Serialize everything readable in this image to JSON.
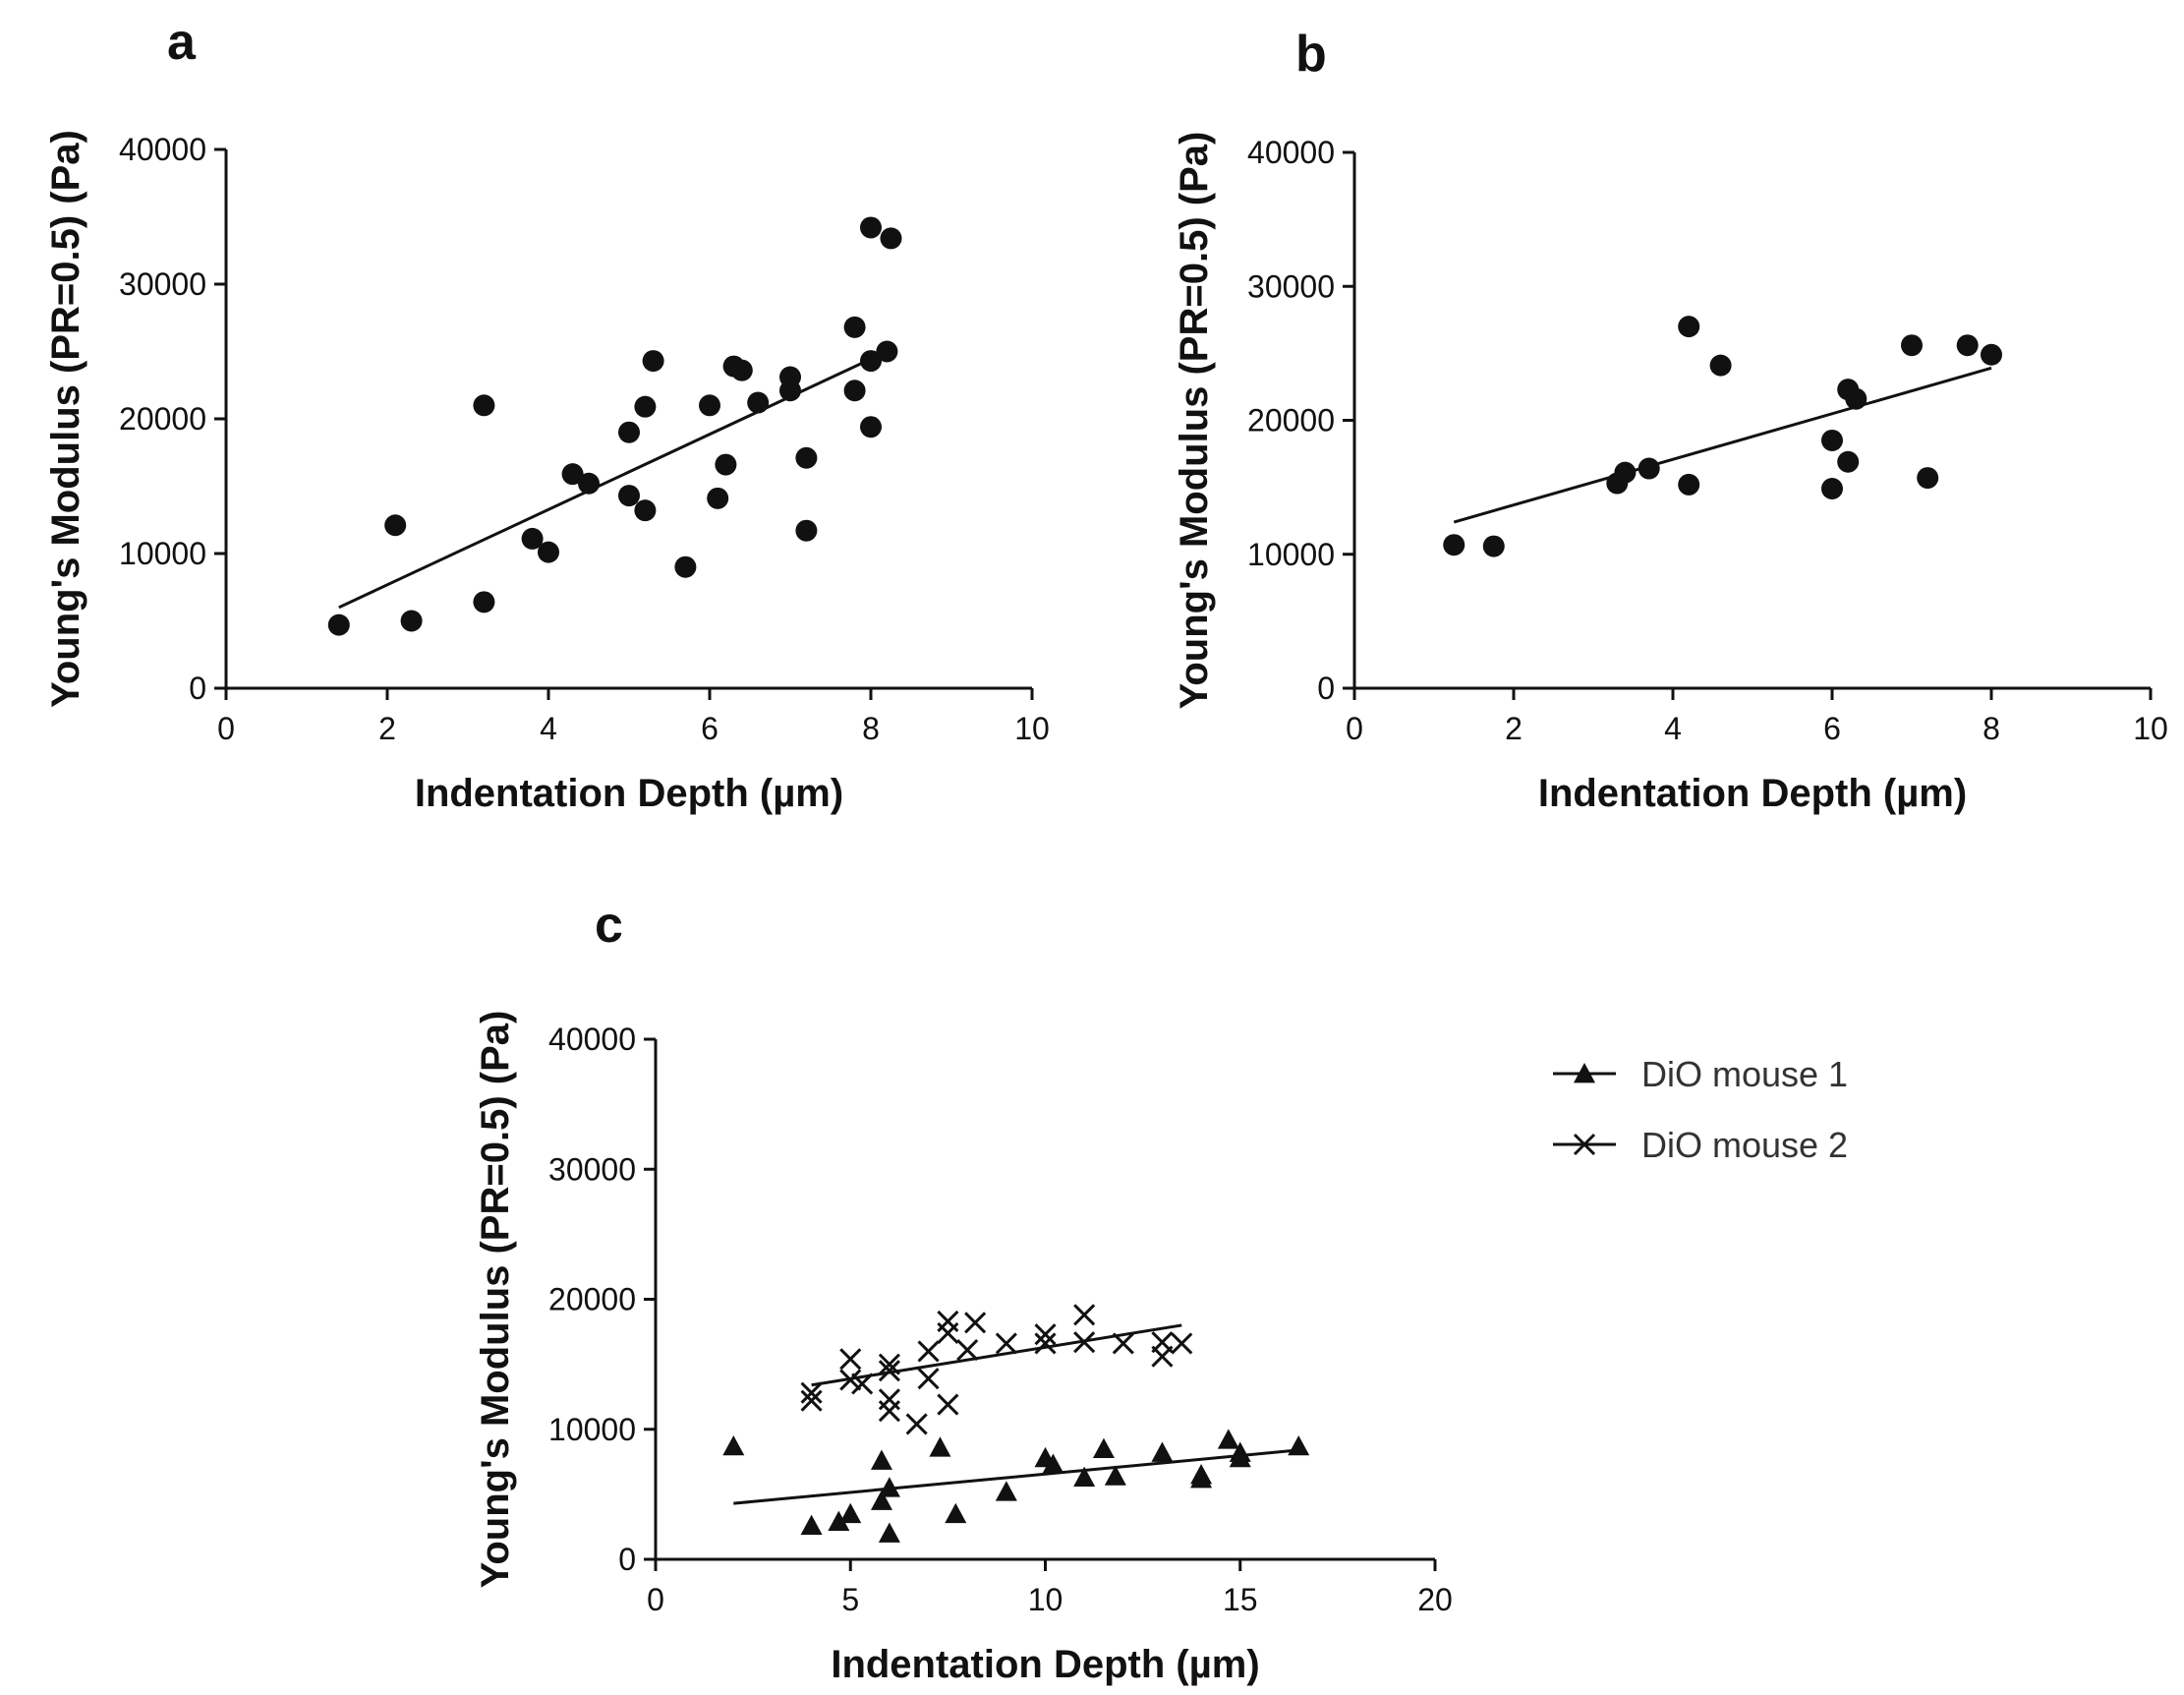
{
  "chart_data": [
    {
      "panel": "a",
      "type": "scatter",
      "xlabel": "Indentation Depth (µm)",
      "ylabel": "Young's Modulus (PR=0.5) (Pa)",
      "xlim": [
        0,
        10
      ],
      "ylim": [
        0,
        40000
      ],
      "xticks": [
        0,
        2,
        4,
        6,
        8,
        10
      ],
      "yticks": [
        0,
        10000,
        20000,
        30000,
        40000
      ],
      "series": [
        {
          "name": "data",
          "marker": "circle",
          "points": [
            [
              1.4,
              4700
            ],
            [
              2.1,
              12100
            ],
            [
              2.3,
              5000
            ],
            [
              3.2,
              21000
            ],
            [
              3.2,
              6400
            ],
            [
              3.8,
              11100
            ],
            [
              4.0,
              10100
            ],
            [
              4.3,
              15900
            ],
            [
              4.5,
              15200
            ],
            [
              5.0,
              19000
            ],
            [
              5.0,
              14300
            ],
            [
              5.2,
              20900
            ],
            [
              5.2,
              13200
            ],
            [
              5.3,
              24300
            ],
            [
              5.7,
              9000
            ],
            [
              6.0,
              21000
            ],
            [
              6.1,
              14100
            ],
            [
              6.2,
              16600
            ],
            [
              6.3,
              23900
            ],
            [
              6.4,
              23600
            ],
            [
              6.6,
              21200
            ],
            [
              7.0,
              23100
            ],
            [
              7.0,
              22100
            ],
            [
              7.2,
              17100
            ],
            [
              7.2,
              11700
            ],
            [
              7.8,
              26800
            ],
            [
              7.8,
              22100
            ],
            [
              8.0,
              34200
            ],
            [
              8.0,
              24300
            ],
            [
              8.0,
              19400
            ],
            [
              8.2,
              25000
            ],
            [
              8.25,
              33400
            ]
          ],
          "fit": [
            [
              1.4,
              6000
            ],
            [
              8.2,
              25000
            ]
          ]
        }
      ]
    },
    {
      "panel": "b",
      "type": "scatter",
      "xlabel": "Indentation Depth (µm)",
      "ylabel": "Young's Modulus (PR=0.5) (Pa)",
      "xlim": [
        0,
        10
      ],
      "ylim": [
        0,
        40000
      ],
      "xticks": [
        0,
        2,
        4,
        6,
        8,
        10
      ],
      "yticks": [
        0,
        10000,
        20000,
        30000,
        40000
      ],
      "series": [
        {
          "name": "data",
          "marker": "circle",
          "points": [
            [
              1.25,
              10700
            ],
            [
              1.75,
              10600
            ],
            [
              3.3,
              15300
            ],
            [
              3.4,
              16100
            ],
            [
              3.7,
              16400
            ],
            [
              4.2,
              27000
            ],
            [
              4.2,
              15200
            ],
            [
              4.6,
              24100
            ],
            [
              6.0,
              18500
            ],
            [
              6.0,
              14900
            ],
            [
              6.2,
              22300
            ],
            [
              6.2,
              16900
            ],
            [
              6.3,
              21600
            ],
            [
              7.0,
              25600
            ],
            [
              7.2,
              15700
            ],
            [
              7.7,
              25600
            ],
            [
              8.0,
              24900
            ]
          ],
          "fit": [
            [
              1.25,
              12400
            ],
            [
              8.0,
              23900
            ]
          ]
        }
      ]
    },
    {
      "panel": "c",
      "type": "scatter",
      "xlabel": "Indentation Depth (µm)",
      "ylabel": "Young's Modulus (PR=0.5) (Pa)",
      "xlim": [
        0,
        20
      ],
      "ylim": [
        0,
        40000
      ],
      "xticks": [
        0,
        5,
        10,
        15,
        20
      ],
      "yticks": [
        0,
        10000,
        20000,
        30000,
        40000
      ],
      "legend_position": "right",
      "series": [
        {
          "name": "DiO mouse 1",
          "marker": "triangle",
          "points": [
            [
              2.0,
              8700
            ],
            [
              4.0,
              2600
            ],
            [
              4.7,
              2900
            ],
            [
              5.0,
              3500
            ],
            [
              5.8,
              7600
            ],
            [
              5.8,
              4500
            ],
            [
              6.0,
              5500
            ],
            [
              6.0,
              2000
            ],
            [
              7.3,
              8600
            ],
            [
              7.7,
              3500
            ],
            [
              9.0,
              5200
            ],
            [
              10.0,
              7800
            ],
            [
              10.2,
              7300
            ],
            [
              11.0,
              6300
            ],
            [
              11.5,
              8500
            ],
            [
              11.8,
              6400
            ],
            [
              13.0,
              8200
            ],
            [
              14.0,
              6500
            ],
            [
              14.0,
              6200
            ],
            [
              14.7,
              9200
            ],
            [
              15.0,
              8200
            ],
            [
              15.0,
              7800
            ],
            [
              16.5,
              8700
            ]
          ],
          "fit": [
            [
              2.0,
              4300
            ],
            [
              16.5,
              8400
            ]
          ]
        },
        {
          "name": "DiO mouse 2",
          "marker": "cross",
          "points": [
            [
              4.0,
              12800
            ],
            [
              4.0,
              12200
            ],
            [
              5.0,
              15400
            ],
            [
              5.0,
              13800
            ],
            [
              5.3,
              13500
            ],
            [
              6.0,
              15000
            ],
            [
              6.0,
              14500
            ],
            [
              6.0,
              12300
            ],
            [
              6.0,
              11400
            ],
            [
              6.7,
              10400
            ],
            [
              7.0,
              16000
            ],
            [
              7.0,
              13900
            ],
            [
              7.5,
              18300
            ],
            [
              7.5,
              17400
            ],
            [
              7.5,
              11900
            ],
            [
              8.0,
              16100
            ],
            [
              8.2,
              18200
            ],
            [
              9.0,
              16600
            ],
            [
              10.0,
              17300
            ],
            [
              10.0,
              16600
            ],
            [
              11.0,
              18800
            ],
            [
              11.0,
              16700
            ],
            [
              12.0,
              16600
            ],
            [
              13.0,
              16700
            ],
            [
              13.0,
              15600
            ],
            [
              13.5,
              16600
            ]
          ],
          "fit": [
            [
              4.0,
              13400
            ],
            [
              13.5,
              18000
            ]
          ]
        }
      ]
    }
  ]
}
